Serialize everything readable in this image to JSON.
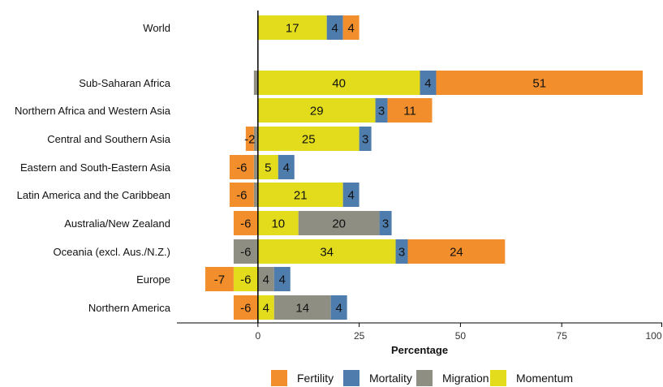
{
  "chart_data": {
    "type": "bar",
    "orientation": "horizontal",
    "stacked": true,
    "categories": [
      "World",
      "Sub-Saharan Africa",
      "Northern Africa and Western Asia",
      "Central and Southern Asia",
      "Eastern and South-Eastern Asia",
      "Latin America and the Caribbean",
      "Australia/New Zealand",
      "Oceania (excl. Aus./N.Z.)",
      "Europe",
      "Northern America"
    ],
    "series": [
      {
        "name": "Momentum",
        "color": "#e3dc1c",
        "values": [
          17,
          40,
          29,
          25,
          5,
          21,
          10,
          34,
          -6,
          4
        ]
      },
      {
        "name": "Migration",
        "color": "#8e8e83",
        "values": [
          0,
          -1,
          0,
          -1,
          -1,
          -1,
          20,
          -6,
          4,
          14
        ]
      },
      {
        "name": "Mortality",
        "color": "#4e7cac",
        "values": [
          4,
          4,
          3,
          3,
          4,
          4,
          3,
          3,
          4,
          4
        ]
      },
      {
        "name": "Fertility",
        "color": "#f28e2b",
        "values": [
          4,
          51,
          11,
          -2,
          -6,
          -6,
          -6,
          24,
          -7,
          -6
        ]
      }
    ],
    "data_labels": [
      {
        "category": "World",
        "series": "Momentum",
        "text": "17"
      },
      {
        "category": "World",
        "series": "Mortality",
        "text": "4"
      },
      {
        "category": "World",
        "series": "Fertility",
        "text": "4"
      },
      {
        "category": "Sub-Saharan Africa",
        "series": "Momentum",
        "text": "40"
      },
      {
        "category": "Sub-Saharan Africa",
        "series": "Mortality",
        "text": "4"
      },
      {
        "category": "Sub-Saharan Africa",
        "series": "Fertility",
        "text": "51"
      },
      {
        "category": "Northern Africa and Western Asia",
        "series": "Momentum",
        "text": "29"
      },
      {
        "category": "Northern Africa and Western Asia",
        "series": "Mortality",
        "text": "3"
      },
      {
        "category": "Northern Africa and Western Asia",
        "series": "Fertility",
        "text": "11"
      },
      {
        "category": "Central and Southern Asia",
        "series": "Fertility",
        "text": "-2"
      },
      {
        "category": "Central and Southern Asia",
        "series": "Momentum",
        "text": "25"
      },
      {
        "category": "Central and Southern Asia",
        "series": "Mortality",
        "text": "3"
      },
      {
        "category": "Eastern and South-Eastern Asia",
        "series": "Fertility",
        "text": "-6"
      },
      {
        "category": "Eastern and South-Eastern Asia",
        "series": "Momentum",
        "text": "5"
      },
      {
        "category": "Eastern and South-Eastern Asia",
        "series": "Mortality",
        "text": "4"
      },
      {
        "category": "Latin America and the Caribbean",
        "series": "Fertility",
        "text": "-6"
      },
      {
        "category": "Latin America and the Caribbean",
        "series": "Momentum",
        "text": "21"
      },
      {
        "category": "Latin America and the Caribbean",
        "series": "Mortality",
        "text": "4"
      },
      {
        "category": "Australia/New Zealand",
        "series": "Fertility",
        "text": "-6"
      },
      {
        "category": "Australia/New Zealand",
        "series": "Momentum",
        "text": "10"
      },
      {
        "category": "Australia/New Zealand",
        "series": "Migration",
        "text": "20"
      },
      {
        "category": "Australia/New Zealand",
        "series": "Mortality",
        "text": "3"
      },
      {
        "category": "Oceania (excl. Aus./N.Z.)",
        "series": "Migration",
        "text": "-6"
      },
      {
        "category": "Oceania (excl. Aus./N.Z.)",
        "series": "Momentum",
        "text": "34"
      },
      {
        "category": "Oceania (excl. Aus./N.Z.)",
        "series": "Mortality",
        "text": "3"
      },
      {
        "category": "Oceania (excl. Aus./N.Z.)",
        "series": "Fertility",
        "text": "24"
      },
      {
        "category": "Europe",
        "series": "Fertility",
        "text": "-7"
      },
      {
        "category": "Europe",
        "series": "Momentum",
        "text": "-6"
      },
      {
        "category": "Europe",
        "series": "Migration",
        "text": "4"
      },
      {
        "category": "Europe",
        "series": "Mortality",
        "text": "4"
      },
      {
        "category": "Northern America",
        "series": "Fertility",
        "text": "-6"
      },
      {
        "category": "Northern America",
        "series": "Momentum",
        "text": "4"
      },
      {
        "category": "Northern America",
        "series": "Migration",
        "text": "14"
      },
      {
        "category": "Northern America",
        "series": "Mortality",
        "text": "4"
      }
    ],
    "title": "",
    "xlabel": "Percentage",
    "ylabel": "",
    "xlim": [
      -20,
      100
    ],
    "xticks": [
      0,
      25,
      50,
      75,
      100
    ],
    "grid": false,
    "legend_position": "bottom",
    "legend_order": [
      "Fertility",
      "Mortality",
      "Migration",
      "Momentum"
    ]
  }
}
